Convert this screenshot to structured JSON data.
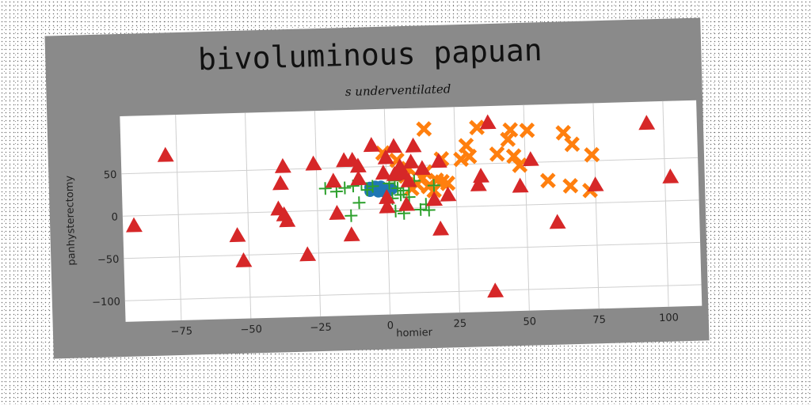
{
  "chart_data": {
    "type": "scatter",
    "title": "bivoluminous papuan",
    "subtitle": "s underventilated",
    "xlabel": "homier",
    "ylabel": "panhysterectomy",
    "xlim": [
      -95,
      112
    ],
    "ylim": [
      -125,
      118
    ],
    "xticks": [
      -75,
      -50,
      -25,
      0,
      25,
      50,
      75,
      100
    ],
    "yticks": [
      -100,
      -50,
      0,
      50
    ],
    "grid": true,
    "legend": "none",
    "series": [
      {
        "marker": "circle",
        "color": "#1f77b4",
        "points": [
          [
            -6,
            26
          ],
          [
            -5,
            24
          ],
          [
            -4,
            27
          ],
          [
            -3,
            23
          ],
          [
            -4,
            22
          ],
          [
            -2,
            25
          ],
          [
            -1,
            22
          ],
          [
            0,
            24
          ],
          [
            -3,
            20
          ],
          [
            -1,
            20
          ],
          [
            1,
            21
          ],
          [
            -6,
            21
          ],
          [
            -2,
            27
          ],
          [
            2,
            23
          ]
        ]
      },
      {
        "marker": "x",
        "color": "#ff7f0e",
        "points": [
          [
            14,
            93
          ],
          [
            33,
            93
          ],
          [
            45,
            89
          ],
          [
            51,
            88
          ],
          [
            64,
            84
          ],
          [
            29,
            72
          ],
          [
            44,
            78
          ],
          [
            67,
            70
          ],
          [
            30,
            59
          ],
          [
            27,
            56
          ],
          [
            40,
            61
          ],
          [
            74,
            57
          ],
          [
            46,
            58
          ],
          [
            48,
            47
          ],
          [
            -1,
            66
          ],
          [
            20,
            57
          ],
          [
            4,
            57
          ],
          [
            8,
            47
          ],
          [
            14,
            42
          ],
          [
            58,
            28
          ],
          [
            66,
            21
          ],
          [
            73,
            15
          ],
          [
            7,
            38
          ],
          [
            13,
            35
          ],
          [
            18,
            32
          ],
          [
            20,
            30
          ],
          [
            11,
            28
          ],
          [
            15,
            25
          ],
          [
            9,
            23
          ],
          [
            17,
            20
          ],
          [
            22,
            28
          ]
        ]
      },
      {
        "marker": "plus",
        "color": "#2ca02c",
        "points": [
          [
            -22,
            26
          ],
          [
            -18,
            22
          ],
          [
            -15,
            26
          ],
          [
            -12,
            28
          ],
          [
            -9,
            31
          ],
          [
            -10,
            8
          ],
          [
            -13,
            -7
          ],
          [
            1,
            30
          ],
          [
            3,
            33
          ],
          [
            4,
            24
          ],
          [
            6,
            21
          ],
          [
            8,
            28
          ],
          [
            10,
            32
          ],
          [
            5,
            16
          ],
          [
            2,
            12
          ],
          [
            0,
            10
          ],
          [
            3,
            -3
          ],
          [
            6,
            -6
          ],
          [
            12,
            -2
          ],
          [
            14,
            4
          ],
          [
            15,
            -3
          ],
          [
            -5,
            27
          ],
          [
            -7,
            23
          ],
          [
            8,
            13
          ],
          [
            17,
            26
          ]
        ]
      },
      {
        "marker": "triangle",
        "color": "#d62728",
        "points": [
          [
            -79,
            70
          ],
          [
            -91,
            -12
          ],
          [
            -37,
            53
          ],
          [
            -38,
            33
          ],
          [
            -39,
            3
          ],
          [
            -37,
            -4
          ],
          [
            -36,
            -11
          ],
          [
            -54,
            -27
          ],
          [
            -52,
            -57
          ],
          [
            -29,
            -52
          ],
          [
            -26,
            55
          ],
          [
            -19,
            34
          ],
          [
            -18,
            -4
          ],
          [
            -15,
            58
          ],
          [
            -12,
            58
          ],
          [
            -10,
            51
          ],
          [
            -10,
            36
          ],
          [
            -13,
            -30
          ],
          [
            -5,
            75
          ],
          [
            3,
            73
          ],
          [
            10,
            73
          ],
          [
            0,
            60
          ],
          [
            5,
            49
          ],
          [
            -1,
            42
          ],
          [
            3,
            40
          ],
          [
            6,
            41
          ],
          [
            9,
            54
          ],
          [
            13,
            46
          ],
          [
            8,
            32
          ],
          [
            19,
            54
          ],
          [
            0,
            13
          ],
          [
            0,
            2
          ],
          [
            7,
            4
          ],
          [
            17,
            9
          ],
          [
            19,
            -26
          ],
          [
            22,
            14
          ],
          [
            37,
            98
          ],
          [
            34,
            35
          ],
          [
            33,
            25
          ],
          [
            48,
            22
          ],
          [
            52,
            53
          ],
          [
            38,
            -101
          ],
          [
            61,
            -22
          ],
          [
            75,
            21
          ],
          [
            94,
            92
          ],
          [
            102,
            28
          ]
        ]
      }
    ]
  }
}
